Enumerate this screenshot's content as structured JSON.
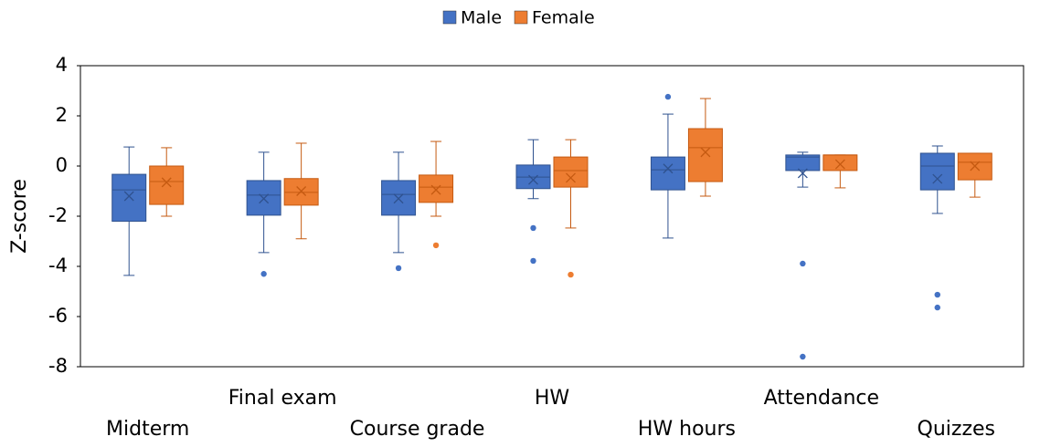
{
  "chart_data": {
    "type": "box",
    "y_label": "Z-score",
    "categories": [
      "Midterm",
      "Final exam",
      "Course grade",
      "HW",
      "HW hours",
      "Attendance",
      "Quizzes"
    ],
    "ylim": [
      -8,
      4
    ],
    "yticks": [
      -8,
      -6,
      -4,
      -2,
      0,
      2,
      4
    ],
    "legend": "top",
    "series": [
      {
        "name": "Male",
        "color": "#4472c4",
        "boxes": [
          {
            "min": -4.36,
            "q1": -2.2,
            "median": -0.95,
            "q3": -0.33,
            "max": 0.76,
            "mean": -1.2,
            "outliers": []
          },
          {
            "min": -3.45,
            "q1": -1.96,
            "median": -1.16,
            "q3": -0.58,
            "max": 0.55,
            "mean": -1.3,
            "outliers": [
              -4.3
            ]
          },
          {
            "min": -3.45,
            "q1": -1.96,
            "median": -1.13,
            "q3": -0.58,
            "max": 0.55,
            "mean": -1.3,
            "outliers": [
              -4.07
            ]
          },
          {
            "min": -1.3,
            "q1": -0.9,
            "median": -0.44,
            "q3": 0.04,
            "max": 1.05,
            "mean": -0.55,
            "outliers": [
              -2.47,
              -3.78
            ]
          },
          {
            "min": -2.87,
            "q1": -0.95,
            "median": -0.15,
            "q3": 0.36,
            "max": 2.07,
            "mean": -0.1,
            "outliers": [
              2.76
            ]
          },
          {
            "min": -0.84,
            "q1": -0.18,
            "median": 0.36,
            "q3": 0.44,
            "max": 0.55,
            "mean": -0.29,
            "outliers": [
              -3.89,
              -7.6
            ]
          },
          {
            "min": -1.89,
            "q1": -0.95,
            "median": 0,
            "q3": 0.51,
            "max": 0.8,
            "mean": -0.51,
            "outliers": [
              -5.13,
              -5.64
            ]
          }
        ]
      },
      {
        "name": "Female",
        "color": "#ed7d31",
        "boxes": [
          {
            "min": -2.0,
            "q1": -1.53,
            "median": -0.62,
            "q3": 0,
            "max": 0.73,
            "mean": -0.65,
            "outliers": []
          },
          {
            "min": -2.9,
            "q1": -1.56,
            "median": -1.05,
            "q3": -0.5,
            "max": 0.91,
            "mean": -1.0,
            "outliers": []
          },
          {
            "min": -2.0,
            "q1": -1.45,
            "median": -0.84,
            "q3": -0.36,
            "max": 0.98,
            "mean": -0.95,
            "outliers": [
              -3.16
            ]
          },
          {
            "min": -2.47,
            "q1": -0.84,
            "median": -0.18,
            "q3": 0.36,
            "max": 1.05,
            "mean": -0.47,
            "outliers": [
              -4.33
            ]
          },
          {
            "min": -1.2,
            "q1": -0.62,
            "median": 0.73,
            "q3": 1.49,
            "max": 2.69,
            "mean": 0.55,
            "outliers": []
          },
          {
            "min": -0.87,
            "q1": -0.18,
            "median": 0.44,
            "q3": 0.44,
            "max": 0.44,
            "mean": 0.07,
            "outliers": []
          },
          {
            "min": -1.24,
            "q1": -0.55,
            "median": 0.15,
            "q3": 0.51,
            "max": 0.51,
            "mean": 0,
            "outliers": []
          }
        ]
      }
    ]
  }
}
